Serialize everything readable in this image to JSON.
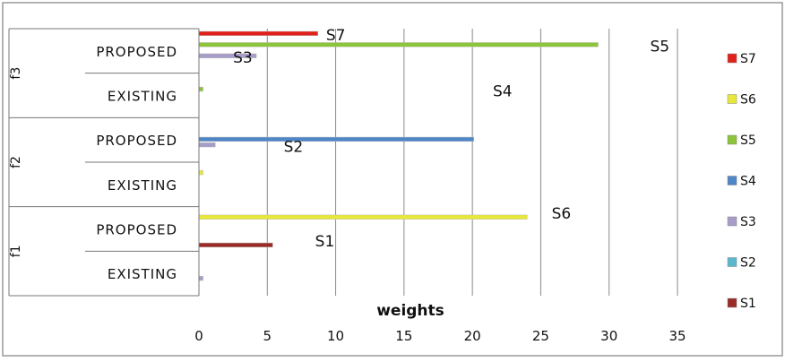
{
  "chart_data": {
    "type": "bar",
    "orientation": "horizontal",
    "xlabel": "weights",
    "xlim": [
      0,
      35
    ],
    "x_ticks": [
      0,
      5,
      10,
      15,
      20,
      25,
      30,
      35
    ],
    "grid": "vertical",
    "legend_position": "right",
    "groups": [
      {
        "name": "f3",
        "rows": [
          "PROPOSED",
          "EXISTING"
        ]
      },
      {
        "name": "f2",
        "rows": [
          "PROPOSED",
          "EXISTING"
        ]
      },
      {
        "name": "f1",
        "rows": [
          "PROPOSED",
          "EXISTING"
        ]
      }
    ],
    "series": [
      {
        "name": "S7",
        "color": "#e0201a",
        "values": {
          "f3|PROPOSED": 8.7,
          "f3|EXISTING": 0,
          "f2|PROPOSED": 0,
          "f2|EXISTING": 0,
          "f1|PROPOSED": 0,
          "f1|EXISTING": 0
        }
      },
      {
        "name": "S6",
        "color": "#e8e83a",
        "values": {
          "f3|PROPOSED": 0,
          "f3|EXISTING": 0,
          "f2|PROPOSED": 0,
          "f2|EXISTING": 0.3,
          "f1|PROPOSED": 24,
          "f1|EXISTING": 0
        }
      },
      {
        "name": "S5",
        "color": "#8cc43a",
        "values": {
          "f3|PROPOSED": 29.2,
          "f3|EXISTING": 0.3,
          "f2|PROPOSED": 0,
          "f2|EXISTING": 0,
          "f1|PROPOSED": 0,
          "f1|EXISTING": 0
        }
      },
      {
        "name": "S4",
        "color": "#4f86c8",
        "values": {
          "f3|PROPOSED": 0,
          "f3|EXISTING": 0,
          "f2|PROPOSED": 20.1,
          "f2|EXISTING": 0,
          "f1|PROPOSED": 0,
          "f1|EXISTING": 0
        }
      },
      {
        "name": "S3",
        "color": "#a89cc8",
        "values": {
          "f3|PROPOSED": 4.2,
          "f3|EXISTING": 0,
          "f2|PROPOSED": 1.2,
          "f2|EXISTING": 0,
          "f1|PROPOSED": 0,
          "f1|EXISTING": 0.3
        }
      },
      {
        "name": "S2",
        "color": "#5bb8cc",
        "values": {
          "f3|PROPOSED": 0,
          "f3|EXISTING": 0,
          "f2|PROPOSED": 0,
          "f2|EXISTING": 0,
          "f1|PROPOSED": 0,
          "f1|EXISTING": 0
        }
      },
      {
        "name": "S1",
        "color": "#9a2a25",
        "values": {
          "f3|PROPOSED": 0,
          "f3|EXISTING": 0,
          "f2|PROPOSED": 0,
          "f2|EXISTING": 0,
          "f1|PROPOSED": 5.4,
          "f1|EXISTING": 0
        }
      }
    ],
    "annotations": [
      {
        "text": "S7",
        "x": 9.3,
        "group": "f3",
        "row": "PROPOSED",
        "slot": 0
      },
      {
        "text": "S3",
        "x": 2.5,
        "group": "f3",
        "row": "PROPOSED",
        "slot": 4
      },
      {
        "text": "S5",
        "x": 33,
        "group": "f3",
        "row": "PROPOSED",
        "slot": 2
      },
      {
        "text": "S4",
        "x": 21.5,
        "group": "f3",
        "row": "EXISTING",
        "slot": 2
      },
      {
        "text": "S2",
        "x": 6.2,
        "group": "f2",
        "row": "PROPOSED",
        "slot": 4
      },
      {
        "text": "S6",
        "x": 25.8,
        "group": "f1",
        "row": "PROPOSED",
        "slot": 0
      },
      {
        "text": "S1",
        "x": 8.5,
        "group": "f1",
        "row": "PROPOSED",
        "slot": 5
      }
    ]
  }
}
